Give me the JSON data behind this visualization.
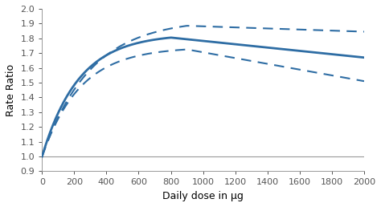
{
  "title": "",
  "xlabel": "Daily dose in μg",
  "ylabel": "Rate Ratio",
  "xlim": [
    0,
    2000
  ],
  "ylim": [
    0.9,
    2.0
  ],
  "yticks": [
    0.9,
    1.0,
    1.1,
    1.2,
    1.3,
    1.4,
    1.5,
    1.6,
    1.7,
    1.8,
    1.9,
    2.0
  ],
  "xticks": [
    0,
    200,
    400,
    600,
    800,
    1000,
    1200,
    1400,
    1600,
    1800,
    2000
  ],
  "line_color": "#2E6DA4",
  "ref_line_color": "#999999",
  "ref_line_y": 1.0,
  "background_color": "#ffffff",
  "main_peak_x": 800,
  "main_peak_y": 1.805,
  "main_end_y": 1.67,
  "upper_peak_x": 900,
  "upper_peak_y": 1.885,
  "upper_end_y": 1.845,
  "lower_peak_x": 1000,
  "lower_peak_y": 1.72,
  "lower_end_y": 1.51
}
